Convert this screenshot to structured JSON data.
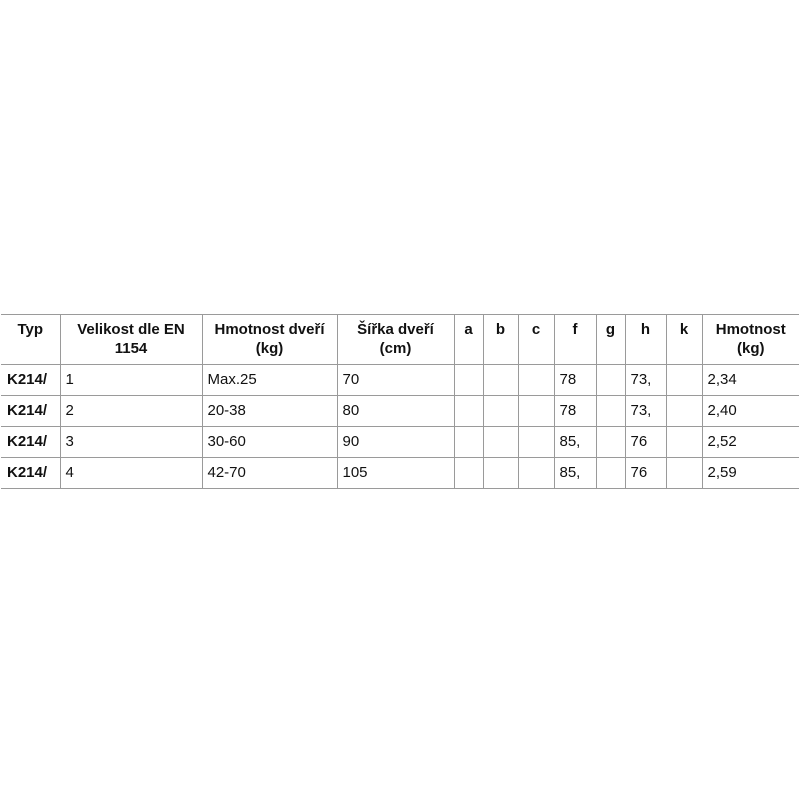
{
  "table": {
    "headers": [
      "Typ",
      "Velikost dle EN 1154",
      "Hmotnost dveří (kg)",
      "Šířka dveří (cm)",
      "a",
      "b",
      "c",
      "f",
      "g",
      "h",
      "k",
      "Hmotnost (kg)"
    ],
    "rows": [
      [
        "K214/",
        "1",
        "Max.25",
        "70",
        "",
        "",
        "",
        "78",
        "",
        "73,",
        "",
        "2,34"
      ],
      [
        "K214/",
        "2",
        "20-38",
        "80",
        "",
        "",
        "",
        "78",
        "",
        "73,",
        "",
        "2,40"
      ],
      [
        "K214/",
        "3",
        "30-60",
        "90",
        "",
        "",
        "",
        "85,",
        "",
        "76",
        "",
        "2,52"
      ],
      [
        "K214/",
        "4",
        "42-70",
        "105",
        "",
        "",
        "",
        "85,",
        "",
        "76",
        "",
        "2,59"
      ]
    ]
  }
}
